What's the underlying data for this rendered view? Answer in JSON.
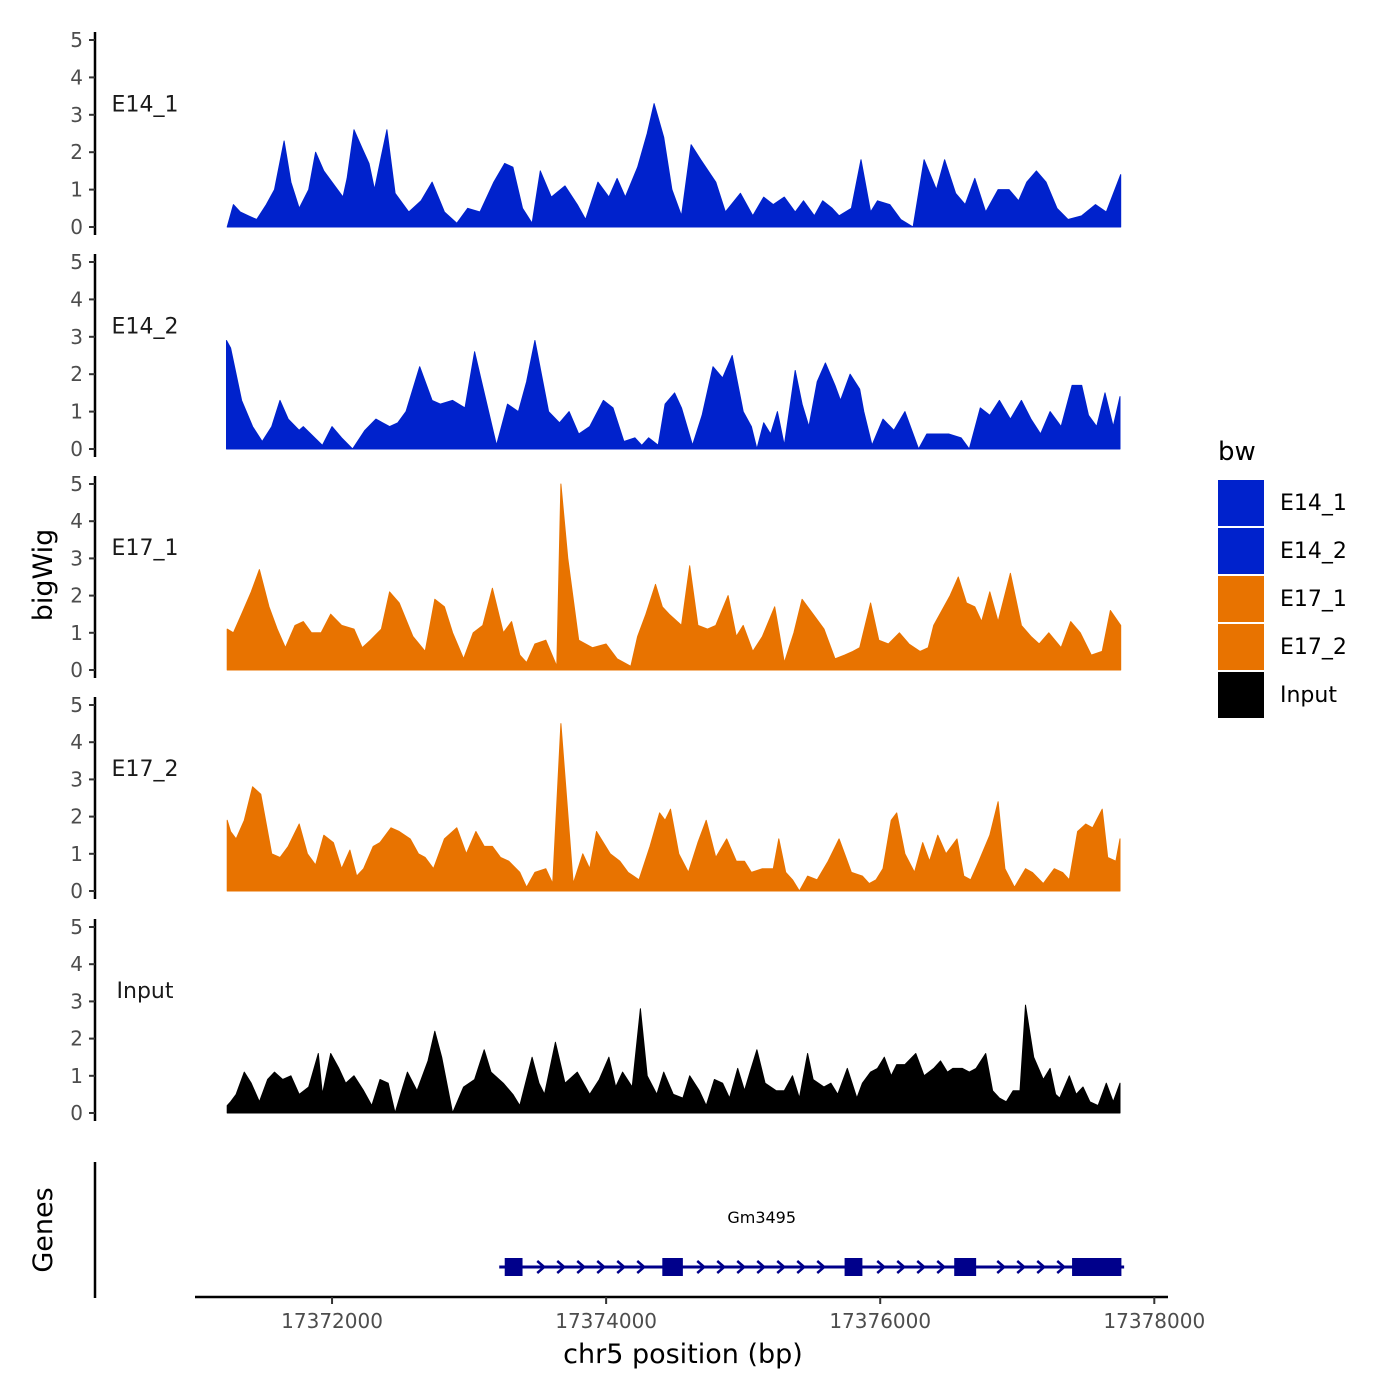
{
  "chart_data": {
    "type": "area",
    "title": "",
    "xlabel": "chr5 position (bp)",
    "ylabel": "bigWig",
    "genes_label": "Genes",
    "xlim": [
      17371000,
      17378100
    ],
    "xticks": [
      17372000,
      17374000,
      17376000,
      17378000
    ],
    "xtick_labels": [
      "17372000",
      "17374000",
      "17376000",
      "17378000"
    ],
    "ylim": [
      0,
      5
    ],
    "yticks": [
      0,
      1,
      2,
      3,
      4,
      5
    ],
    "ytick_labels": [
      "0",
      "1",
      "2",
      "3",
      "4",
      "5"
    ],
    "legend": {
      "title": "bw",
      "position": "right",
      "entries": [
        {
          "label": "E14_1",
          "color": "#0022CC"
        },
        {
          "label": "E14_2",
          "color": "#0022CC"
        },
        {
          "label": "E17_1",
          "color": "#E87300"
        },
        {
          "label": "E17_2",
          "color": "#E87300"
        },
        {
          "label": "Input",
          "color": "#000000"
        }
      ]
    },
    "series": [
      {
        "name": "E14_1",
        "color": "#0022CC",
        "x": [
          17371235,
          17371280,
          17371330,
          17371390,
          17371450,
          17371520,
          17371580,
          17371650,
          17371700,
          17371760,
          17371830,
          17371880,
          17371940,
          17372020,
          17372080,
          17372110,
          17372160,
          17372220,
          17372270,
          17372310,
          17372360,
          17372400,
          17372460,
          17372560,
          17372650,
          17372730,
          17372820,
          17372910,
          17372990,
          17373080,
          17373180,
          17373260,
          17373320,
          17373390,
          17373460,
          17373520,
          17373600,
          17373700,
          17373790,
          17373850,
          17373940,
          17374020,
          17374080,
          17374140,
          17374230,
          17374300,
          17374350,
          17374420,
          17374480,
          17374550,
          17374620,
          17374690,
          17374800,
          17374870,
          17374980,
          17375070,
          17375150,
          17375220,
          17375300,
          17375380,
          17375440,
          17375520,
          17375580,
          17375650,
          17375700,
          17375790,
          17375860,
          17375930,
          17375980,
          17376070,
          17376150,
          17376240,
          17376320,
          17376410,
          17376470,
          17376550,
          17376620,
          17376690,
          17376770,
          17376860,
          17376940,
          17377010,
          17377070,
          17377140,
          17377210,
          17377290,
          17377370,
          17377470,
          17377570,
          17377650,
          17377755
        ],
        "y": [
          0.0,
          0.6,
          0.4,
          0.3,
          0.2,
          0.6,
          1.0,
          2.3,
          1.2,
          0.5,
          1.0,
          2.0,
          1.5,
          1.1,
          0.8,
          1.3,
          2.6,
          2.1,
          1.7,
          1.0,
          1.9,
          2.6,
          0.9,
          0.4,
          0.7,
          1.2,
          0.4,
          0.1,
          0.5,
          0.4,
          1.2,
          1.7,
          1.6,
          0.5,
          0.1,
          1.5,
          0.8,
          1.1,
          0.6,
          0.2,
          1.2,
          0.8,
          1.3,
          0.8,
          1.6,
          2.5,
          3.3,
          2.4,
          1.0,
          0.3,
          2.2,
          1.8,
          1.2,
          0.4,
          0.9,
          0.3,
          0.8,
          0.6,
          0.8,
          0.4,
          0.7,
          0.3,
          0.7,
          0.5,
          0.3,
          0.5,
          1.8,
          0.4,
          0.7,
          0.6,
          0.2,
          0.0,
          1.8,
          1.0,
          1.8,
          0.9,
          0.6,
          1.3,
          0.4,
          1.0,
          1.0,
          0.7,
          1.2,
          1.5,
          1.2,
          0.5,
          0.2,
          0.3,
          0.6,
          0.4,
          1.4
        ]
      },
      {
        "name": "E14_2",
        "color": "#0022CC",
        "x": [
          17371230,
          17371260,
          17371340,
          17371420,
          17371490,
          17371560,
          17371620,
          17371680,
          17371760,
          17371790,
          17371930,
          17372000,
          17372070,
          17372150,
          17372240,
          17372320,
          17372420,
          17372480,
          17372540,
          17372640,
          17372730,
          17372790,
          17372880,
          17372970,
          17373040,
          17373110,
          17373200,
          17373280,
          17373360,
          17373420,
          17373480,
          17373580,
          17373660,
          17373730,
          17373800,
          17373880,
          17373980,
          17374050,
          17374130,
          17374210,
          17374260,
          17374310,
          17374380,
          17374430,
          17374500,
          17374550,
          17374630,
          17374700,
          17374780,
          17374850,
          17374920,
          17375000,
          17375060,
          17375100,
          17375150,
          17375200,
          17375250,
          17375300,
          17375380,
          17375430,
          17375480,
          17375540,
          17375600,
          17375670,
          17375710,
          17375780,
          17375850,
          17375880,
          17375940,
          17376020,
          17376100,
          17376180,
          17376280,
          17376340,
          17376420,
          17376500,
          17376590,
          17376650,
          17376730,
          17376800,
          17376870,
          17376950,
          17377030,
          17377100,
          17377170,
          17377240,
          17377320,
          17377400,
          17377470,
          17377520,
          17377580,
          17377640,
          17377700,
          17377750
        ],
        "y": [
          2.9,
          2.7,
          1.3,
          0.6,
          0.2,
          0.6,
          1.3,
          0.8,
          0.5,
          0.6,
          0.1,
          0.6,
          0.3,
          0.0,
          0.5,
          0.8,
          0.6,
          0.7,
          1.0,
          2.2,
          1.3,
          1.2,
          1.3,
          1.1,
          2.6,
          1.5,
          0.1,
          1.2,
          1.0,
          1.8,
          2.9,
          1.0,
          0.7,
          1.0,
          0.4,
          0.6,
          1.3,
          1.1,
          0.2,
          0.3,
          0.1,
          0.3,
          0.1,
          1.2,
          1.5,
          1.1,
          0.1,
          0.9,
          2.2,
          1.9,
          2.5,
          1.0,
          0.6,
          0.0,
          0.7,
          0.4,
          1.0,
          0.1,
          2.1,
          1.2,
          0.6,
          1.8,
          2.3,
          1.7,
          1.3,
          2.0,
          1.6,
          1.0,
          0.1,
          0.8,
          0.5,
          1.0,
          0.0,
          0.4,
          0.4,
          0.4,
          0.3,
          0.0,
          1.1,
          0.9,
          1.3,
          0.8,
          1.3,
          0.8,
          0.4,
          1.0,
          0.6,
          1.7,
          1.7,
          0.9,
          0.6,
          1.5,
          0.6,
          1.4
        ]
      },
      {
        "name": "E17_1",
        "color": "#E87300",
        "x": [
          17371235,
          17371280,
          17371340,
          17371410,
          17371470,
          17371540,
          17371600,
          17371660,
          17371730,
          17371790,
          17371850,
          17371920,
          17371990,
          17372070,
          17372160,
          17372220,
          17372280,
          17372360,
          17372420,
          17372490,
          17372590,
          17372680,
          17372750,
          17372820,
          17372880,
          17372960,
          17373030,
          17373100,
          17373170,
          17373250,
          17373310,
          17373370,
          17373420,
          17373480,
          17373560,
          17373640,
          17373670,
          17373720,
          17373800,
          17373900,
          17374000,
          17374080,
          17374180,
          17374230,
          17374290,
          17374360,
          17374410,
          17374460,
          17374550,
          17374610,
          17374670,
          17374740,
          17374800,
          17374890,
          17374950,
          17375000,
          17375070,
          17375140,
          17375230,
          17375300,
          17375370,
          17375430,
          17375510,
          17375590,
          17375670,
          17375740,
          17375800,
          17375850,
          17375930,
          17375990,
          17376060,
          17376140,
          17376210,
          17376290,
          17376350,
          17376390,
          17376450,
          17376510,
          17376570,
          17376630,
          17376690,
          17376740,
          17376800,
          17376860,
          17376950,
          17377030,
          17377100,
          17377160,
          17377230,
          17377320,
          17377390,
          17377460,
          17377540,
          17377620,
          17377680,
          17377755
        ],
        "y": [
          1.1,
          1.0,
          1.5,
          2.1,
          2.7,
          1.7,
          1.1,
          0.6,
          1.2,
          1.3,
          1.0,
          1.0,
          1.5,
          1.2,
          1.1,
          0.6,
          0.8,
          1.1,
          2.1,
          1.8,
          0.9,
          0.5,
          1.9,
          1.7,
          1.0,
          0.3,
          1.0,
          1.2,
          2.2,
          1.0,
          1.3,
          0.4,
          0.2,
          0.7,
          0.8,
          0.1,
          5.0,
          3.0,
          0.8,
          0.6,
          0.7,
          0.3,
          0.1,
          0.9,
          1.5,
          2.3,
          1.7,
          1.5,
          1.2,
          2.8,
          1.2,
          1.1,
          1.2,
          2.0,
          0.9,
          1.2,
          0.5,
          0.9,
          1.7,
          0.2,
          1.0,
          1.9,
          1.5,
          1.1,
          0.3,
          0.4,
          0.5,
          0.6,
          1.8,
          0.8,
          0.7,
          1.0,
          0.7,
          0.5,
          0.6,
          1.2,
          1.6,
          2.0,
          2.5,
          1.8,
          1.7,
          1.3,
          2.1,
          1.3,
          2.6,
          1.2,
          0.9,
          0.7,
          1.0,
          0.6,
          1.3,
          1.0,
          0.4,
          0.5,
          1.6,
          1.2
        ]
      },
      {
        "name": "E17_2",
        "color": "#E87300",
        "x": [
          17371235,
          17371260,
          17371300,
          17371360,
          17371420,
          17371480,
          17371560,
          17371620,
          17371680,
          17371760,
          17371820,
          17371880,
          17371940,
          17372010,
          17372070,
          17372130,
          17372180,
          17372230,
          17372300,
          17372350,
          17372430,
          17372490,
          17372570,
          17372630,
          17372680,
          17372740,
          17372820,
          17372910,
          17372980,
          17373050,
          17373110,
          17373170,
          17373230,
          17373290,
          17373370,
          17373420,
          17373480,
          17373560,
          17373610,
          17373670,
          17373760,
          17373830,
          17373880,
          17373930,
          17374030,
          17374100,
          17374160,
          17374240,
          17374320,
          17374390,
          17374430,
          17374470,
          17374530,
          17374600,
          17374670,
          17374730,
          17374800,
          17374880,
          17374950,
          17375010,
          17375060,
          17375140,
          17375220,
          17375260,
          17375310,
          17375360,
          17375410,
          17375470,
          17375540,
          17375620,
          17375700,
          17375790,
          17375870,
          17375920,
          17375970,
          17376020,
          17376080,
          17376120,
          17376180,
          17376250,
          17376310,
          17376360,
          17376420,
          17376480,
          17376560,
          17376610,
          17376660,
          17376720,
          17376800,
          17376860,
          17376910,
          17376980,
          17377060,
          17377110,
          17377190,
          17377270,
          17377330,
          17377380,
          17377440,
          17377500,
          17377550,
          17377620,
          17377660,
          17377720,
          17377750
        ],
        "y": [
          1.9,
          1.6,
          1.4,
          1.9,
          2.8,
          2.6,
          1.0,
          0.9,
          1.2,
          1.8,
          1.0,
          0.7,
          1.5,
          1.3,
          0.6,
          1.1,
          0.4,
          0.6,
          1.2,
          1.3,
          1.7,
          1.6,
          1.4,
          1.0,
          0.9,
          0.6,
          1.4,
          1.7,
          1.0,
          1.6,
          1.2,
          1.2,
          0.9,
          0.8,
          0.5,
          0.1,
          0.5,
          0.6,
          0.2,
          4.5,
          0.2,
          1.0,
          0.6,
          1.6,
          1.0,
          0.8,
          0.5,
          0.3,
          1.2,
          2.1,
          1.9,
          2.2,
          1.0,
          0.5,
          1.3,
          1.9,
          0.9,
          1.4,
          0.8,
          0.8,
          0.5,
          0.6,
          0.6,
          1.4,
          0.5,
          0.3,
          0.0,
          0.4,
          0.3,
          0.8,
          1.4,
          0.5,
          0.4,
          0.2,
          0.3,
          0.6,
          1.9,
          2.1,
          1.0,
          0.5,
          1.3,
          0.8,
          1.5,
          1.0,
          1.4,
          0.4,
          0.3,
          0.8,
          1.5,
          2.4,
          0.6,
          0.1,
          0.6,
          0.5,
          0.2,
          0.6,
          0.5,
          0.3,
          1.6,
          1.8,
          1.7,
          2.2,
          0.9,
          0.8,
          1.4
        ]
      },
      {
        "name": "Input",
        "color": "#000000",
        "x": [
          17371235,
          17371260,
          17371300,
          17371360,
          17371410,
          17371470,
          17371530,
          17371580,
          17371640,
          17371700,
          17371760,
          17371830,
          17371900,
          17371930,
          17371990,
          17372050,
          17372100,
          17372160,
          17372230,
          17372290,
          17372350,
          17372410,
          17372460,
          17372500,
          17372550,
          17372620,
          17372700,
          17372750,
          17372800,
          17372880,
          17372960,
          17373040,
          17373110,
          17373160,
          17373250,
          17373320,
          17373370,
          17373460,
          17373510,
          17373550,
          17373630,
          17373700,
          17373790,
          17373880,
          17373950,
          17374020,
          17374070,
          17374120,
          17374190,
          17374250,
          17374300,
          17374370,
          17374420,
          17374490,
          17374560,
          17374610,
          17374680,
          17374730,
          17374790,
          17374850,
          17374900,
          17374960,
          17375010,
          17375050,
          17375100,
          17375160,
          17375240,
          17375300,
          17375360,
          17375410,
          17375470,
          17375510,
          17375590,
          17375640,
          17375690,
          17375760,
          17375830,
          17375870,
          17375930,
          17375980,
          17376030,
          17376080,
          17376120,
          17376180,
          17376260,
          17376320,
          17376390,
          17376440,
          17376490,
          17376530,
          17376600,
          17376650,
          17376700,
          17376770,
          17376820,
          17376870,
          17376920,
          17376970,
          17377020,
          17377060,
          17377120,
          17377190,
          17377240,
          17377280,
          17377310,
          17377380,
          17377430,
          17377480,
          17377530,
          17377590,
          17377650,
          17377700,
          17377750
        ],
        "y": [
          0.2,
          0.3,
          0.5,
          1.1,
          0.8,
          0.3,
          0.9,
          1.1,
          0.9,
          1.0,
          0.5,
          0.7,
          1.6,
          0.5,
          1.6,
          1.2,
          0.8,
          1.0,
          0.6,
          0.2,
          0.9,
          0.8,
          0.0,
          0.5,
          1.1,
          0.6,
          1.4,
          2.2,
          1.5,
          0.0,
          0.7,
          0.9,
          1.7,
          1.1,
          0.8,
          0.5,
          0.2,
          1.5,
          0.8,
          0.5,
          1.9,
          0.8,
          1.1,
          0.5,
          0.9,
          1.5,
          0.7,
          1.1,
          0.7,
          2.8,
          1.0,
          0.5,
          1.1,
          0.5,
          0.4,
          1.0,
          0.6,
          0.2,
          0.9,
          0.8,
          0.4,
          1.2,
          0.6,
          1.1,
          1.7,
          0.8,
          0.6,
          0.6,
          1.0,
          0.4,
          1.6,
          0.9,
          0.7,
          0.8,
          0.5,
          1.2,
          0.4,
          0.8,
          1.1,
          1.2,
          1.5,
          1.0,
          1.3,
          1.3,
          1.6,
          1.0,
          1.2,
          1.4,
          1.1,
          1.2,
          1.2,
          1.1,
          1.2,
          1.6,
          0.6,
          0.4,
          0.3,
          0.6,
          0.6,
          2.9,
          1.5,
          0.9,
          1.2,
          0.5,
          0.4,
          1.0,
          0.5,
          0.7,
          0.3,
          0.2,
          0.8,
          0.3,
          0.8
        ]
      }
    ],
    "genes": [
      {
        "name": "Gm3495",
        "color": "#00008B",
        "strand": "+",
        "start": 17373220,
        "end": 17377780,
        "exons": [
          [
            17373260,
            17373390
          ],
          [
            17374410,
            17374560
          ],
          [
            17375740,
            17375870
          ],
          [
            17376540,
            17376700
          ],
          [
            17377400,
            17377760
          ]
        ]
      }
    ]
  }
}
